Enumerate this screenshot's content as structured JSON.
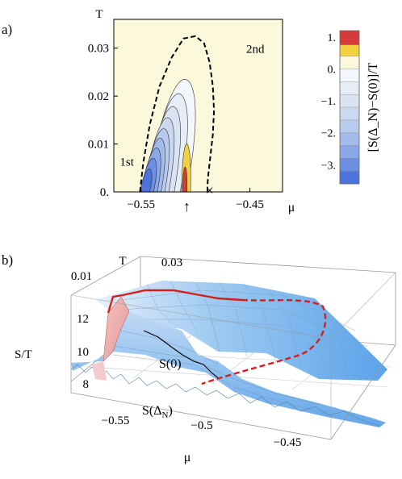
{
  "panel_a": {
    "label": "a)",
    "chart_data": {
      "type": "heatmap",
      "subtype": "contour",
      "xlabel": "μ",
      "ylabel": "T",
      "xlim": [
        -0.575,
        -0.42
      ],
      "ylim": [
        0,
        0.036
      ],
      "x_ticks": [
        {
          "value": -0.55,
          "label": "−0.55"
        },
        {
          "value": -0.45,
          "label": "−0.45"
        }
      ],
      "y_ticks": [
        {
          "value": 0,
          "label": "0."
        },
        {
          "value": 0.01,
          "label": "0.01"
        },
        {
          "value": 0.02,
          "label": "0.02"
        },
        {
          "value": 0.03,
          "label": "0.03"
        }
      ],
      "annotations": [
        {
          "text": "1st",
          "mu": -0.563,
          "T": 0.0055
        },
        {
          "text": "2nd",
          "mu": -0.445,
          "T": 0.029
        },
        {
          "text": "↑",
          "mu": -0.508,
          "T": -0.003
        },
        {
          "text": "×",
          "mu": -0.487,
          "T": 0.0003
        }
      ],
      "transition_line_dashed": {
        "mu": [
          -0.551,
          -0.548,
          -0.542,
          -0.533,
          -0.522,
          -0.511,
          -0.5,
          -0.492,
          -0.487,
          -0.484,
          -0.483,
          -0.484,
          -0.486,
          -0.488,
          -0.489,
          -0.489
        ],
        "T": [
          0.0,
          0.006,
          0.014,
          0.022,
          0.028,
          0.032,
          0.0325,
          0.031,
          0.027,
          0.022,
          0.017,
          0.012,
          0.008,
          0.004,
          0.0015,
          0.0
        ]
      },
      "colorbar": {
        "title": "[S(Δ_N)−S(0)]/T",
        "min": -3.6,
        "max": 1.2,
        "ticks": [
          {
            "value": 1,
            "label": "1."
          },
          {
            "value": 0,
            "label": "0."
          },
          {
            "value": -1,
            "label": "−1."
          },
          {
            "value": -2,
            "label": "−2."
          },
          {
            "value": -3,
            "label": "−3."
          }
        ],
        "bands": [
          {
            "from": 0.75,
            "to": 1.2,
            "color": "#d63a3a"
          },
          {
            "from": 0.4,
            "to": 0.75,
            "color": "#f2d13e"
          },
          {
            "from": 0.0,
            "to": 0.4,
            "color": "#fbf8dc"
          },
          {
            "from": -0.4,
            "to": 0.0,
            "color": "#f3f6fa"
          },
          {
            "from": -0.8,
            "to": -0.4,
            "color": "#e7edf6"
          },
          {
            "from": -1.2,
            "to": -0.8,
            "color": "#dae3f2"
          },
          {
            "from": -1.6,
            "to": -1.2,
            "color": "#cbd8f0"
          },
          {
            "from": -2.0,
            "to": -1.6,
            "color": "#b9cbec"
          },
          {
            "from": -2.4,
            "to": -2.0,
            "color": "#a3bbea"
          },
          {
            "from": -2.8,
            "to": -2.4,
            "color": "#8aa7e6"
          },
          {
            "from": -3.2,
            "to": -2.8,
            "color": "#6c8fe2"
          },
          {
            "from": -3.6,
            "to": -3.2,
            "color": "#4c74dc"
          }
        ]
      },
      "negative_lobe_levels": [
        {
          "level": -0.2,
          "mu_center": -0.528,
          "mu_half_width": 0.02,
          "T_top": 0.0235,
          "color": "#f3f6fa"
        },
        {
          "level": -0.6,
          "mu_center": -0.531,
          "mu_half_width": 0.017,
          "T_top": 0.0205,
          "color": "#e7edf6"
        },
        {
          "level": -1.0,
          "mu_center": -0.534,
          "mu_half_width": 0.0145,
          "T_top": 0.0178,
          "color": "#dae3f2"
        },
        {
          "level": -1.4,
          "mu_center": -0.537,
          "mu_half_width": 0.0125,
          "T_top": 0.0155,
          "color": "#cbd8f0"
        },
        {
          "level": -1.8,
          "mu_center": -0.539,
          "mu_half_width": 0.0108,
          "T_top": 0.0132,
          "color": "#b9cbec"
        },
        {
          "level": -2.2,
          "mu_center": -0.541,
          "mu_half_width": 0.0094,
          "T_top": 0.0112,
          "color": "#a3bbea"
        },
        {
          "level": -2.6,
          "mu_center": -0.543,
          "mu_half_width": 0.008,
          "T_top": 0.0092,
          "color": "#8aa7e6"
        },
        {
          "level": -3.0,
          "mu_center": -0.545,
          "mu_half_width": 0.0066,
          "T_top": 0.007,
          "color": "#6c8fe2"
        },
        {
          "level": -3.4,
          "mu_center": -0.547,
          "mu_half_width": 0.005,
          "T_top": 0.0048,
          "color": "#4c74dc"
        }
      ],
      "positive_lobe_levels": [
        {
          "level": 0.6,
          "mu_center": -0.509,
          "mu_half_width": 0.0045,
          "T_top": 0.01,
          "color": "#f2d13e"
        },
        {
          "level": 1.0,
          "mu_center": -0.51,
          "mu_half_width": 0.0022,
          "T_top": 0.0052,
          "color": "#d63a3a"
        }
      ]
    }
  },
  "panel_b": {
    "label": "b)",
    "chart_data": {
      "type": "area",
      "subtype": "3d-surface",
      "zlabel": "S/T",
      "xlabel": "μ",
      "ylabel": "T",
      "x_ticks": [
        "−0.55",
        "−0.5",
        "−0.45"
      ],
      "y_ticks": [
        "0.01",
        "0.03"
      ],
      "z_ticks": [
        "8",
        "10",
        "12"
      ],
      "surface_labels": [
        "S(0)",
        "S(Δ_N)"
      ],
      "series": [
        {
          "name": "S(0)",
          "mu": [
            -0.58,
            -0.57,
            -0.565,
            -0.56,
            -0.555,
            -0.55,
            -0.54,
            -0.53,
            -0.52,
            -0.51,
            -0.5,
            -0.49,
            -0.48,
            -0.47,
            -0.46,
            -0.45,
            -0.44,
            -0.43
          ],
          "S_over_T": [
            8.6,
            8.8,
            9.0,
            9.6,
            10.6,
            11.0,
            11.2,
            11.3,
            11.2,
            11.0,
            10.8,
            10.5,
            10.2,
            9.9,
            9.6,
            9.3,
            9.0,
            8.8
          ]
        },
        {
          "name": "S(Δ_N)",
          "mu": [
            -0.58,
            -0.57,
            -0.565,
            -0.56,
            -0.555,
            -0.55,
            -0.54,
            -0.53,
            -0.52,
            -0.51,
            -0.5,
            -0.49,
            -0.48,
            -0.47,
            -0.46,
            -0.45,
            -0.44,
            -0.43
          ],
          "S_over_T": [
            8.6,
            8.8,
            8.9,
            12.0,
            11.4,
            10.4,
            9.6,
            9.2,
            9.0,
            9.4,
            9.0,
            8.6,
            8.4,
            8.3,
            8.4,
            8.5,
            8.6,
            8.7
          ]
        }
      ]
    }
  }
}
